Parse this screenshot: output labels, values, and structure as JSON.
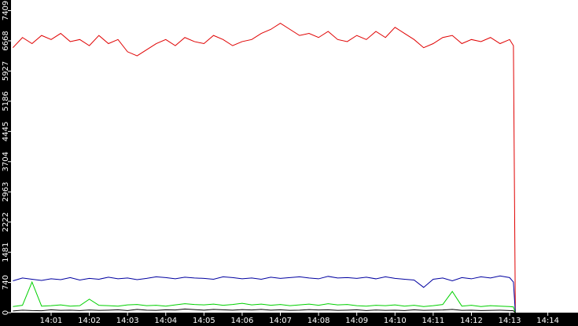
{
  "chart_data": {
    "type": "line",
    "x": [
      0,
      0.25,
      0.5,
      0.75,
      1,
      1.25,
      1.5,
      1.75,
      2,
      2.25,
      2.5,
      2.75,
      3,
      3.25,
      3.5,
      3.75,
      4,
      4.25,
      4.5,
      4.75,
      5,
      5.25,
      5.5,
      5.75,
      6,
      6.25,
      6.5,
      6.75,
      7,
      7.25,
      7.5,
      7.75,
      8,
      8.25,
      8.5,
      8.75,
      9,
      9.25,
      9.5,
      9.75,
      10,
      10.25,
      10.5,
      10.75,
      11,
      11.25,
      11.5,
      11.75,
      12,
      12.25,
      12.5,
      12.75,
      13,
      13.1,
      13.15
    ],
    "series": [
      {
        "color": "#e00000",
        "values": [
          6500,
          6750,
          6600,
          6800,
          6700,
          6850,
          6650,
          6700,
          6550,
          6800,
          6600,
          6700,
          6400,
          6300,
          6450,
          6600,
          6700,
          6550,
          6750,
          6650,
          6600,
          6800,
          6700,
          6550,
          6650,
          6700,
          6850,
          6950,
          7100,
          6950,
          6800,
          6850,
          6750,
          6900,
          6700,
          6650,
          6800,
          6700,
          6900,
          6750,
          7000,
          6850,
          6700,
          6500,
          6600,
          6750,
          6800,
          6600,
          6700,
          6650,
          6750,
          6600,
          6700,
          6550,
          0
        ]
      },
      {
        "color": "#0000a0",
        "values": [
          780,
          850,
          820,
          790,
          830,
          810,
          860,
          800,
          840,
          820,
          870,
          830,
          850,
          810,
          840,
          880,
          860,
          830,
          870,
          850,
          840,
          820,
          880,
          860,
          830,
          850,
          820,
          870,
          840,
          860,
          880,
          850,
          830,
          890,
          850,
          860,
          840,
          870,
          830,
          880,
          840,
          820,
          800,
          620,
          820,
          850,
          780,
          860,
          830,
          880,
          850,
          900,
          860,
          750,
          0
        ]
      },
      {
        "color": "#00d000",
        "values": [
          150,
          180,
          750,
          160,
          170,
          190,
          160,
          170,
          330,
          180,
          170,
          160,
          190,
          200,
          170,
          180,
          160,
          190,
          220,
          200,
          190,
          210,
          180,
          200,
          230,
          190,
          210,
          180,
          200,
          170,
          190,
          210,
          180,
          220,
          190,
          200,
          170,
          160,
          180,
          170,
          190,
          160,
          180,
          150,
          170,
          200,
          520,
          160,
          180,
          150,
          170,
          160,
          150,
          140,
          0
        ]
      },
      {
        "color": "#000000",
        "values": [
          40,
          60,
          50,
          45,
          70,
          55,
          60,
          50,
          65,
          55,
          60,
          70,
          50,
          80,
          60,
          55,
          70,
          65,
          90,
          75,
          60,
          80,
          70,
          60,
          75,
          65,
          80,
          60,
          70,
          55,
          60,
          75,
          65,
          70,
          55,
          60,
          70,
          50,
          65,
          55,
          60,
          50,
          70,
          55,
          60,
          65,
          80,
          55,
          60,
          50,
          55,
          60,
          50,
          45,
          0
        ]
      }
    ],
    "xlim": [
      -0.05,
      14.79
    ],
    "xticks": [
      {
        "value": 1,
        "label": "14:01"
      },
      {
        "value": 2,
        "label": "14:02"
      },
      {
        "value": 3,
        "label": "14:03"
      },
      {
        "value": 4,
        "label": "14:04"
      },
      {
        "value": 5,
        "label": "14:05"
      },
      {
        "value": 6,
        "label": "14:06"
      },
      {
        "value": 7,
        "label": "14:07"
      },
      {
        "value": 8,
        "label": "14:08"
      },
      {
        "value": 9,
        "label": "14:09"
      },
      {
        "value": 10,
        "label": "14:10"
      },
      {
        "value": 11,
        "label": "14:11"
      },
      {
        "value": 12,
        "label": "14:12"
      },
      {
        "value": 13,
        "label": "14:13"
      },
      {
        "value": 14,
        "label": "14:14"
      }
    ],
    "ylim": [
      0,
      7670
    ],
    "yticks": [
      0,
      740,
      1481,
      2222,
      2963,
      3704,
      4445,
      5186,
      5927,
      6668,
      7409
    ]
  }
}
